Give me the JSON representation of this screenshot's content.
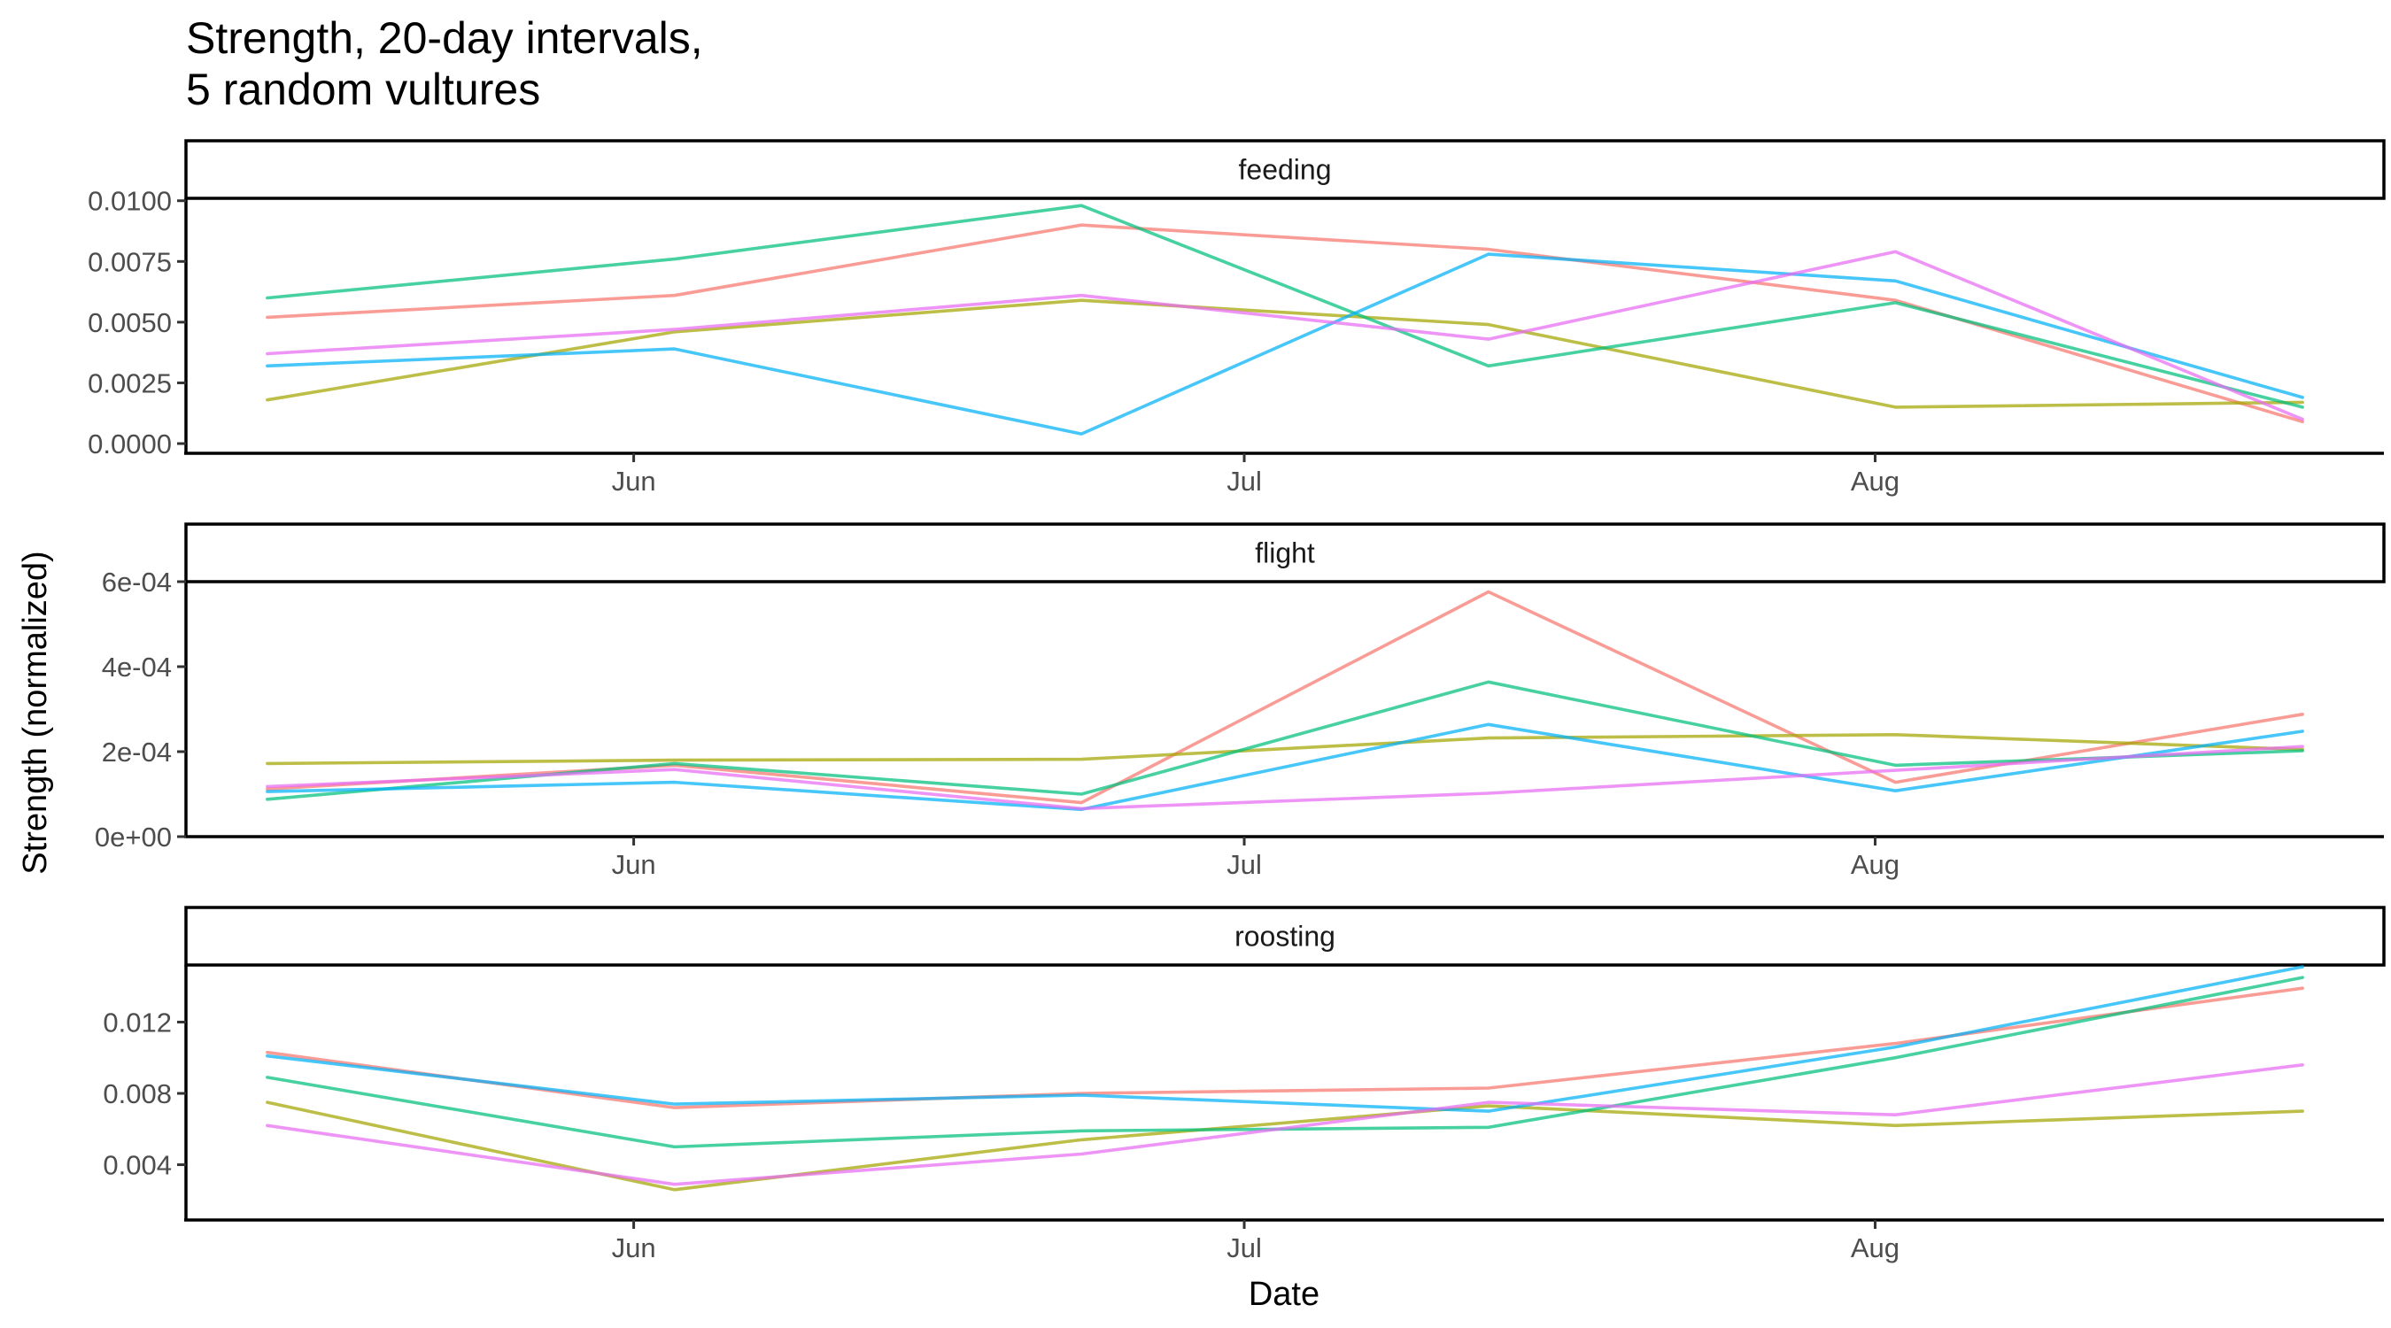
{
  "chart_data": {
    "type": "line",
    "title_lines": [
      "Strength, 20-day intervals,",
      "5 random vultures"
    ],
    "xlabel": "Date",
    "ylabel": "Strength (normalized)",
    "x_ticks": [
      {
        "label": "Jun",
        "date": "2023-06-01"
      },
      {
        "label": "Jul",
        "date": "2023-07-01"
      },
      {
        "label": "Aug",
        "date": "2023-08-01"
      }
    ],
    "x": [
      "2023-05-14",
      "2023-06-03",
      "2023-06-23",
      "2023-07-13",
      "2023-08-02",
      "2023-08-22"
    ],
    "xlim": [
      "2023-05-10",
      "2023-08-26"
    ],
    "grid": false,
    "legend": "none",
    "series_colors": [
      "#F8766D",
      "#A3A500",
      "#00BF7D",
      "#00B0F6",
      "#E76BF3"
    ],
    "panels": [
      {
        "strip": "feeding",
        "ylim": [
          -0.0004,
          0.0101
        ],
        "y_ticks": [
          {
            "label": "0.0000",
            "value": 0.0
          },
          {
            "label": "0.0025",
            "value": 0.0025
          },
          {
            "label": "0.0050",
            "value": 0.005
          },
          {
            "label": "0.0075",
            "value": 0.0075
          },
          {
            "label": "0.0100",
            "value": 0.01
          }
        ],
        "series": [
          {
            "values": [
              0.0052,
              0.0061,
              0.009,
              0.008,
              0.0059,
              0.0009
            ]
          },
          {
            "values": [
              0.0018,
              0.0046,
              0.0059,
              0.0049,
              0.0015,
              0.0017
            ]
          },
          {
            "values": [
              0.006,
              0.0076,
              0.0098,
              0.0032,
              0.0058,
              0.0015
            ]
          },
          {
            "values": [
              0.0032,
              0.0039,
              0.0004,
              0.0078,
              0.0067,
              0.0019
            ]
          },
          {
            "values": [
              0.0037,
              0.0047,
              0.0061,
              0.0043,
              0.0079,
              0.001
            ]
          }
        ]
      },
      {
        "strip": "flight",
        "ylim": [
          0,
          0.0006
        ],
        "y_ticks": [
          {
            "label": "0e+00",
            "value": 0
          },
          {
            "label": "2e-04",
            "value": 0.0002
          },
          {
            "label": "4e-04",
            "value": 0.0004
          },
          {
            "label": "6e-04",
            "value": 0.0006
          }
        ],
        "series": [
          {
            "values": [
              0.000112,
              0.000168,
              8e-05,
              0.000576,
              0.000128,
              0.000288
            ]
          },
          {
            "values": [
              0.000172,
              0.00018,
              0.000182,
              0.000232,
              0.00024,
              0.000205
            ]
          },
          {
            "values": [
              8.8e-05,
              0.000172,
              0.0001,
              0.000364,
              0.000168,
              0.000202
            ]
          },
          {
            "values": [
              0.000106,
              0.000128,
              6.4e-05,
              0.000264,
              0.000108,
              0.000248
            ]
          },
          {
            "values": [
              0.000118,
              0.000158,
              6.6e-05,
              0.000102,
              0.000156,
              0.000212
            ]
          }
        ]
      },
      {
        "strip": "roosting",
        "ylim": [
          0.0009,
          0.0152
        ],
        "y_ticks": [
          {
            "label": "0.004",
            "value": 0.004
          },
          {
            "label": "0.008",
            "value": 0.008
          },
          {
            "label": "0.012",
            "value": 0.012
          }
        ],
        "series": [
          {
            "values": [
              0.0103,
              0.0072,
              0.008,
              0.0083,
              0.0108,
              0.0139
            ]
          },
          {
            "values": [
              0.0075,
              0.0026,
              0.0054,
              0.0073,
              0.0062,
              0.007
            ]
          },
          {
            "values": [
              0.0089,
              0.005,
              0.0059,
              0.0061,
              0.01,
              0.0145
            ]
          },
          {
            "values": [
              0.0101,
              0.0074,
              0.0079,
              0.007,
              0.0106,
              0.0151
            ]
          },
          {
            "values": [
              0.0062,
              0.0029,
              0.0046,
              0.0075,
              0.0068,
              0.0096
            ]
          }
        ]
      }
    ]
  }
}
